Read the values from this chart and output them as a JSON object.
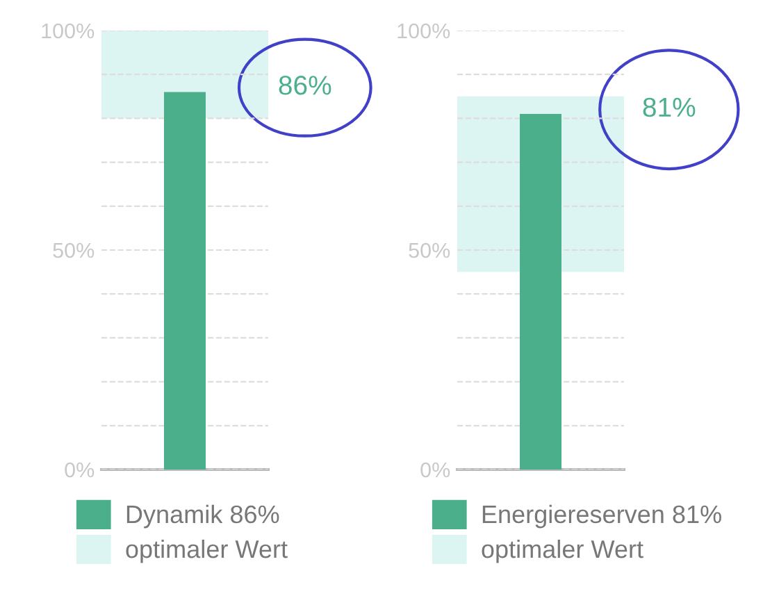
{
  "chart_data": [
    {
      "type": "bar",
      "categories": [
        null
      ],
      "series": [
        {
          "name": "Dynamik 86%",
          "color": "#4caf8c",
          "values": [
            86
          ]
        }
      ],
      "ylim": [
        0,
        100
      ],
      "yticks": [
        {
          "value": 0,
          "label": "0%"
        },
        {
          "value": 10,
          "label": null
        },
        {
          "value": 20,
          "label": null
        },
        {
          "value": 30,
          "label": null
        },
        {
          "value": 40,
          "label": null
        },
        {
          "value": 50,
          "label": "50%"
        },
        {
          "value": 60,
          "label": null
        },
        {
          "value": 70,
          "label": null
        },
        {
          "value": 80,
          "label": null
        },
        {
          "value": 90,
          "label": null
        },
        {
          "value": 100,
          "label": "100%"
        }
      ],
      "bands": [
        {
          "axis": "y",
          "from": 80,
          "to": 100,
          "label": "optimaler Wert",
          "color": "#dcf5f3"
        }
      ],
      "annotations": [
        "86%"
      ],
      "grid": "y",
      "legend": "bottom",
      "tick_labels": "y"
    },
    {
      "type": "bar",
      "categories": [
        null
      ],
      "series": [
        {
          "name": "Energiereserven 81%",
          "color": "#4caf8c",
          "values": [
            81
          ]
        }
      ],
      "ylim": [
        0,
        100
      ],
      "yticks": [
        {
          "value": 0,
          "label": "0%"
        },
        {
          "value": 10,
          "label": null
        },
        {
          "value": 20,
          "label": null
        },
        {
          "value": 30,
          "label": null
        },
        {
          "value": 40,
          "label": null
        },
        {
          "value": 50,
          "label": "50%"
        },
        {
          "value": 60,
          "label": null
        },
        {
          "value": 70,
          "label": null
        },
        {
          "value": 80,
          "label": null
        },
        {
          "value": 90,
          "label": null
        },
        {
          "value": 100,
          "label": "100%"
        }
      ],
      "bands": [
        {
          "axis": "y",
          "from": 45,
          "to": 85,
          "label": "optimaler Wert",
          "color": "#dcf5f3"
        }
      ],
      "annotations": [
        "81%"
      ],
      "grid": "y",
      "legend": "bottom",
      "tick_labels": "y"
    }
  ]
}
